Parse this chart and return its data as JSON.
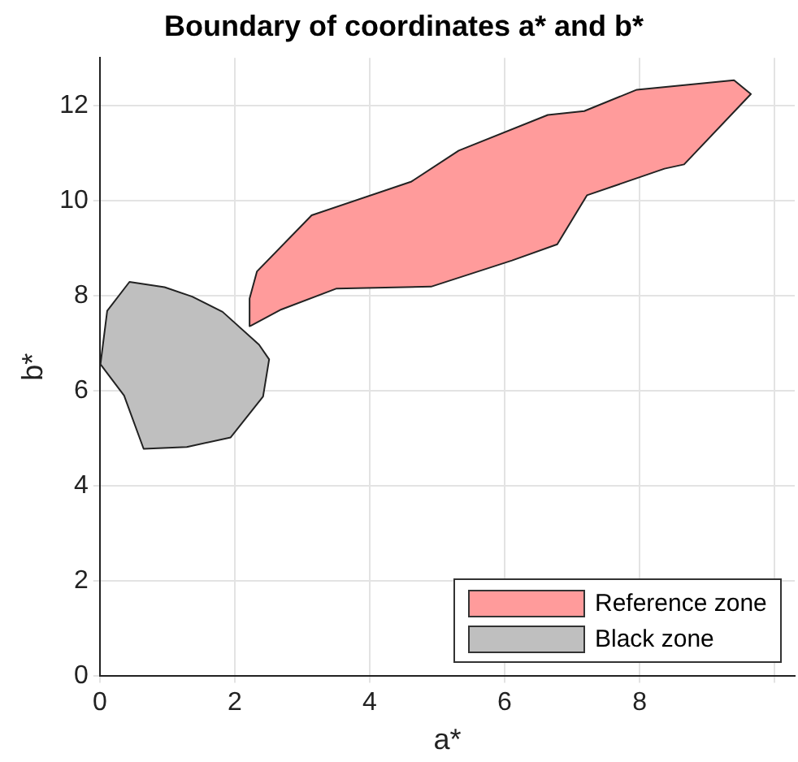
{
  "chart_data": {
    "type": "area",
    "title": "Boundary of coordinates a* and b*",
    "xlabel": "a*",
    "ylabel": "b*",
    "series": [
      {
        "name": "Reference zone",
        "color": "#ff9b9b",
        "x": [
          2.23,
          2.22,
          2.33,
          3.14,
          4.62,
          5.32,
          6.64,
          7.18,
          7.96,
          9.4,
          9.65,
          8.66,
          8.37,
          7.22,
          6.78,
          6.11,
          4.91,
          3.51,
          2.69,
          2.23
        ],
        "values": [
          7.36,
          7.94,
          8.51,
          9.69,
          10.4,
          11.05,
          11.8,
          11.88,
          12.33,
          12.53,
          12.24,
          10.76,
          10.67,
          10.11,
          9.08,
          8.74,
          8.19,
          8.15,
          7.71,
          7.36
        ]
      },
      {
        "name": "Black zone",
        "color": "#bfbfbf",
        "x": [
          0.01,
          0.11,
          0.44,
          0.96,
          1.37,
          1.82,
          2.36,
          2.51,
          2.42,
          1.94,
          1.29,
          0.65,
          0.36,
          0.01
        ],
        "values": [
          6.56,
          7.68,
          8.29,
          8.18,
          7.98,
          7.66,
          6.97,
          6.66,
          5.88,
          5.02,
          4.82,
          4.78,
          5.9,
          6.56
        ]
      }
    ],
    "xlim": [
      0,
      10.3
    ],
    "xticks": [
      0,
      2,
      4,
      6,
      8,
      {
        "value": 10,
        "label": null
      }
    ],
    "ylim": [
      0,
      13
    ],
    "yticks": [
      0,
      2,
      4,
      6,
      8,
      10,
      12
    ],
    "grid": true,
    "legend": "bottom right"
  }
}
